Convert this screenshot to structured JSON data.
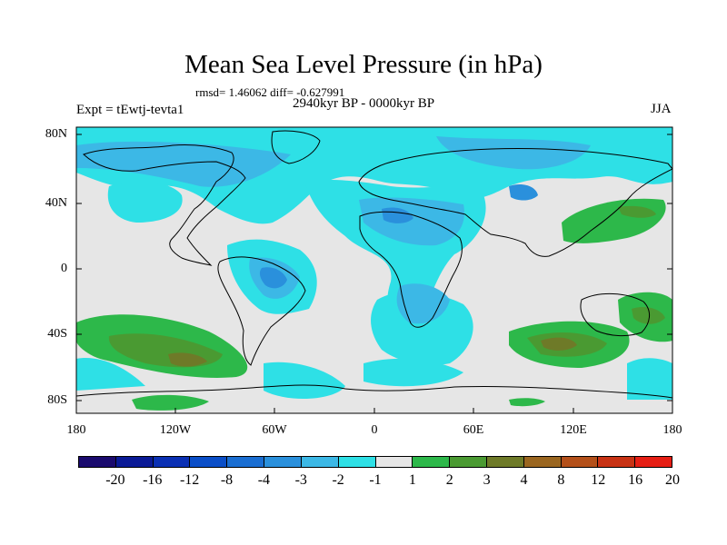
{
  "map": {
    "title": "Mean Sea Level Pressure (in hPa)",
    "stats": "rmsd= 1.46062 diff= -0.627991",
    "period": "2940kyr BP - 0000kyr BP",
    "experiment": "Expt = tEwtj-tevta1",
    "season": "JJA",
    "lat_labels": [
      "80N",
      "40N",
      "0",
      "40S",
      "80S"
    ],
    "lon_labels": [
      "180",
      "120W",
      "60W",
      "0",
      "60E",
      "120E",
      "180"
    ]
  },
  "legend": {
    "labels": [
      "-20",
      "-16",
      "-12",
      "-8",
      "-4",
      "-3",
      "-2",
      "-1",
      "1",
      "2",
      "3",
      "4",
      "8",
      "12",
      "16",
      "20"
    ],
    "colors": [
      "#1a0a6e",
      "#0a1a96",
      "#0a30b4",
      "#0a4ec8",
      "#1a6ed2",
      "#2a90dc",
      "#3cb8e6",
      "#2ee0e6",
      "#e6e6e6",
      "#2db84a",
      "#4a9a32",
      "#6e7a28",
      "#9a6620",
      "#b4501a",
      "#c83214",
      "#e61e14"
    ]
  },
  "colors": {
    "land_contour": "#000000",
    "neutral": "#e6e6e6",
    "minus1": "#2ee0e6",
    "minus2": "#3cb8e6",
    "minus3": "#2a90dc",
    "plus2": "#2db84a",
    "plus3": "#4a9a32",
    "plus4": "#6e7a28"
  }
}
